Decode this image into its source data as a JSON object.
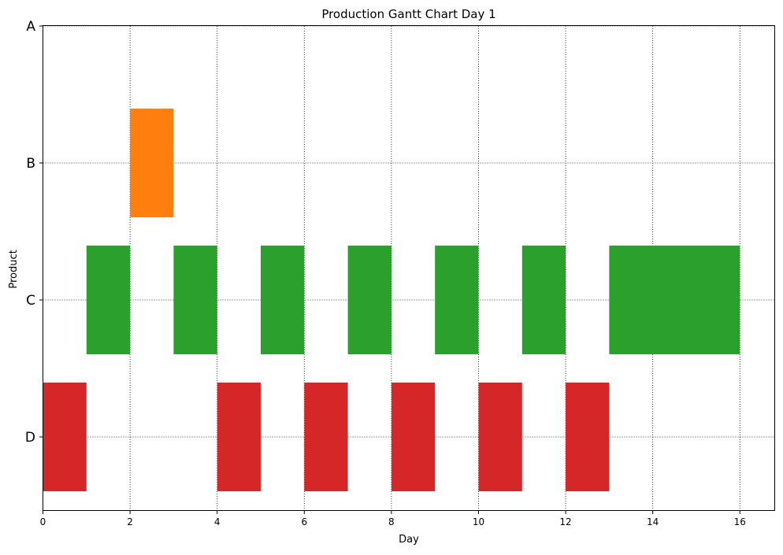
{
  "chart_data": {
    "type": "bar",
    "orientation": "horizontal",
    "title": "Production Gantt Chart Day 1",
    "xlabel": "Day",
    "ylabel": "Product",
    "xlim": [
      0,
      16.8
    ],
    "xticks": [
      0,
      2,
      4,
      6,
      8,
      10,
      12,
      14,
      16
    ],
    "categories": [
      "A",
      "B",
      "C",
      "D"
    ],
    "grid": true,
    "tasks": [
      {
        "product": "D",
        "start": 0,
        "end": 1,
        "color": "#d62728"
      },
      {
        "product": "C",
        "start": 1,
        "end": 2,
        "color": "#2ca02c"
      },
      {
        "product": "B",
        "start": 2,
        "end": 3,
        "color": "#ff7f0e"
      },
      {
        "product": "C",
        "start": 3,
        "end": 4,
        "color": "#2ca02c"
      },
      {
        "product": "D",
        "start": 4,
        "end": 5,
        "color": "#d62728"
      },
      {
        "product": "C",
        "start": 5,
        "end": 6,
        "color": "#2ca02c"
      },
      {
        "product": "D",
        "start": 6,
        "end": 7,
        "color": "#d62728"
      },
      {
        "product": "C",
        "start": 7,
        "end": 8,
        "color": "#2ca02c"
      },
      {
        "product": "D",
        "start": 8,
        "end": 9,
        "color": "#d62728"
      },
      {
        "product": "C",
        "start": 9,
        "end": 10,
        "color": "#2ca02c"
      },
      {
        "product": "D",
        "start": 10,
        "end": 11,
        "color": "#d62728"
      },
      {
        "product": "C",
        "start": 11,
        "end": 12,
        "color": "#2ca02c"
      },
      {
        "product": "D",
        "start": 12,
        "end": 13,
        "color": "#d62728"
      },
      {
        "product": "C",
        "start": 13,
        "end": 16,
        "color": "#2ca02c"
      }
    ]
  }
}
